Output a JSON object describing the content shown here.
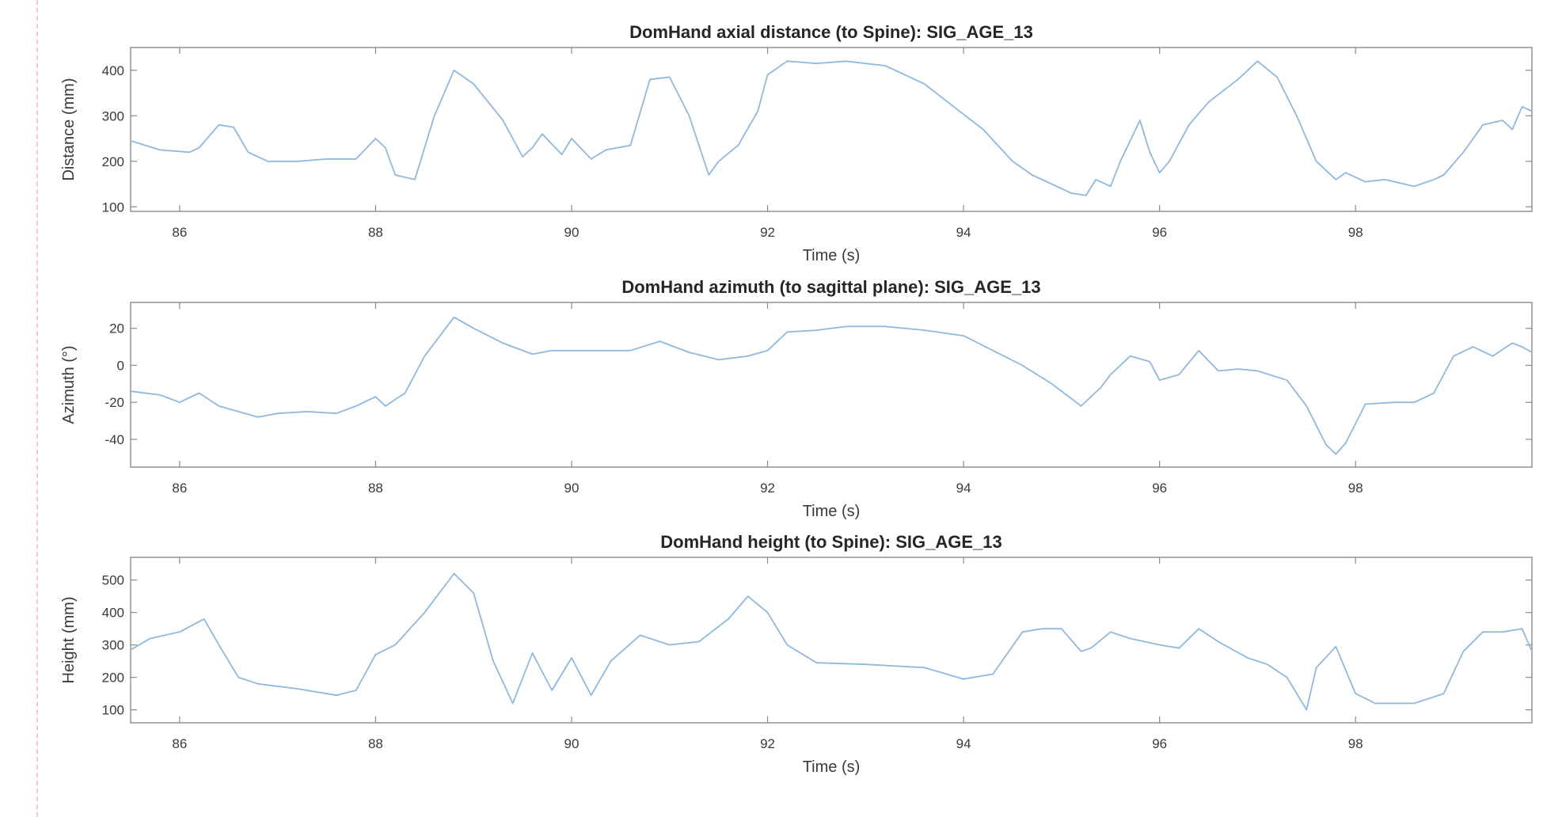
{
  "colors": {
    "series": "#8fb8de",
    "axis": "#8a8a8a",
    "text": "#262626",
    "page_border": "#f2c7d3"
  },
  "chart_data": [
    {
      "type": "line",
      "title": "DomHand axial distance (to Spine): SIG_AGE_13",
      "xlabel": "Time (s)",
      "ylabel": "Distance (mm)",
      "xlim": [
        85.5,
        99.8
      ],
      "ylim": [
        90,
        450
      ],
      "xticks": [
        86,
        88,
        90,
        92,
        94,
        96,
        98
      ],
      "xtick_labels": [
        "86",
        "88",
        "90",
        "92",
        "94",
        "96",
        "98"
      ],
      "yticks": [
        100,
        200,
        300,
        400
      ],
      "ytick_labels": [
        "100",
        "200",
        "300",
        "400"
      ],
      "grid": false,
      "series": [
        {
          "x": [
            85.5,
            85.8,
            86.1,
            86.2,
            86.4,
            86.55,
            86.7,
            86.9,
            87.2,
            87.5,
            87.8,
            88.0,
            88.1,
            88.2,
            88.4,
            88.6,
            88.8,
            89.0,
            89.3,
            89.5,
            89.6,
            89.7,
            89.9,
            90.0,
            90.2,
            90.35,
            90.6,
            90.8,
            91.0,
            91.2,
            91.4,
            91.5,
            91.7,
            91.9,
            92.0,
            92.2,
            92.5,
            92.8,
            93.2,
            93.6,
            93.9,
            94.2,
            94.5,
            94.7,
            94.9,
            95.1,
            95.25,
            95.35,
            95.5,
            95.6,
            95.8,
            95.9,
            96.0,
            96.1,
            96.3,
            96.5,
            96.8,
            97.0,
            97.2,
            97.4,
            97.6,
            97.8,
            97.9,
            98.0,
            98.1,
            98.3,
            98.6,
            98.8,
            98.9,
            99.1,
            99.3,
            99.5,
            99.6,
            99.7,
            99.8
          ],
          "y": [
            245,
            225,
            220,
            230,
            280,
            275,
            220,
            200,
            200,
            205,
            205,
            250,
            230,
            170,
            160,
            300,
            400,
            370,
            290,
            210,
            230,
            260,
            215,
            250,
            205,
            225,
            235,
            380,
            385,
            300,
            170,
            200,
            235,
            310,
            390,
            420,
            415,
            420,
            410,
            370,
            320,
            270,
            200,
            170,
            150,
            130,
            125,
            160,
            145,
            200,
            290,
            220,
            175,
            200,
            280,
            330,
            380,
            420,
            385,
            300,
            200,
            160,
            175,
            165,
            155,
            160,
            145,
            160,
            170,
            220,
            280,
            290,
            270,
            320,
            310
          ]
        }
      ]
    },
    {
      "type": "line",
      "title": "DomHand azimuth (to sagittal plane): SIG_AGE_13",
      "xlabel": "Time (s)",
      "ylabel": "Azimuth (°)",
      "xlim": [
        85.5,
        99.8
      ],
      "ylim": [
        -55,
        34
      ],
      "xticks": [
        86,
        88,
        90,
        92,
        94,
        96,
        98
      ],
      "xtick_labels": [
        "86",
        "88",
        "90",
        "92",
        "94",
        "96",
        "98"
      ],
      "yticks": [
        -40,
        -20,
        0,
        20
      ],
      "ytick_labels": [
        "-40",
        "-20",
        "0",
        "20"
      ],
      "grid": false,
      "series": [
        {
          "x": [
            85.5,
            85.8,
            86.0,
            86.2,
            86.4,
            86.6,
            86.8,
            87.0,
            87.3,
            87.6,
            87.8,
            88.0,
            88.1,
            88.3,
            88.5,
            88.8,
            89.0,
            89.3,
            89.6,
            89.8,
            90.0,
            90.3,
            90.6,
            90.9,
            91.2,
            91.5,
            91.8,
            92.0,
            92.2,
            92.5,
            92.8,
            93.2,
            93.6,
            94.0,
            94.3,
            94.6,
            94.9,
            95.2,
            95.4,
            95.5,
            95.7,
            95.9,
            96.0,
            96.2,
            96.4,
            96.6,
            96.8,
            97.0,
            97.3,
            97.5,
            97.7,
            97.8,
            97.9,
            98.1,
            98.4,
            98.6,
            98.8,
            99.0,
            99.2,
            99.4,
            99.6,
            99.7,
            99.8
          ],
          "y": [
            -14,
            -16,
            -20,
            -15,
            -22,
            -25,
            -28,
            -26,
            -25,
            -26,
            -22,
            -17,
            -22,
            -15,
            5,
            26,
            20,
            12,
            6,
            8,
            8,
            8,
            8,
            13,
            7,
            3,
            5,
            8,
            18,
            19,
            21,
            21,
            19,
            16,
            8,
            0,
            -10,
            -22,
            -12,
            -5,
            5,
            2,
            -8,
            -5,
            8,
            -3,
            -2,
            -3,
            -8,
            -22,
            -43,
            -48,
            -42,
            -21,
            -20,
            -20,
            -15,
            5,
            10,
            5,
            12,
            10,
            7
          ]
        }
      ]
    },
    {
      "type": "line",
      "title": "DomHand height (to Spine): SIG_AGE_13",
      "xlabel": "Time (s)",
      "ylabel": "Height (mm)",
      "xlim": [
        85.5,
        99.8
      ],
      "ylim": [
        60,
        570
      ],
      "xticks": [
        86,
        88,
        90,
        92,
        94,
        96,
        98
      ],
      "xtick_labels": [
        "86",
        "88",
        "90",
        "92",
        "94",
        "96",
        "98"
      ],
      "yticks": [
        100,
        200,
        300,
        400,
        500
      ],
      "ytick_labels": [
        "100",
        "200",
        "300",
        "400",
        "500"
      ],
      "grid": false,
      "series": [
        {
          "x": [
            85.5,
            85.7,
            86.0,
            86.25,
            86.4,
            86.6,
            86.8,
            87.2,
            87.6,
            87.8,
            88.0,
            88.2,
            88.5,
            88.8,
            89.0,
            89.2,
            89.4,
            89.6,
            89.8,
            90.0,
            90.2,
            90.4,
            90.7,
            91.0,
            91.3,
            91.6,
            91.8,
            92.0,
            92.2,
            92.5,
            93.0,
            93.6,
            94.0,
            94.3,
            94.6,
            94.8,
            95.0,
            95.2,
            95.3,
            95.5,
            95.7,
            96.0,
            96.2,
            96.4,
            96.6,
            96.9,
            97.1,
            97.3,
            97.5,
            97.6,
            97.8,
            98.0,
            98.2,
            98.6,
            98.9,
            99.1,
            99.3,
            99.5,
            99.7,
            99.8
          ],
          "y": [
            285,
            320,
            340,
            380,
            300,
            200,
            180,
            165,
            145,
            160,
            270,
            300,
            400,
            520,
            460,
            250,
            120,
            275,
            160,
            260,
            145,
            250,
            330,
            300,
            310,
            380,
            450,
            400,
            300,
            245,
            240,
            230,
            195,
            210,
            340,
            350,
            350,
            280,
            290,
            340,
            320,
            300,
            290,
            350,
            310,
            260,
            240,
            200,
            100,
            230,
            295,
            150,
            120,
            120,
            150,
            280,
            340,
            340,
            350,
            280
          ]
        }
      ]
    }
  ]
}
